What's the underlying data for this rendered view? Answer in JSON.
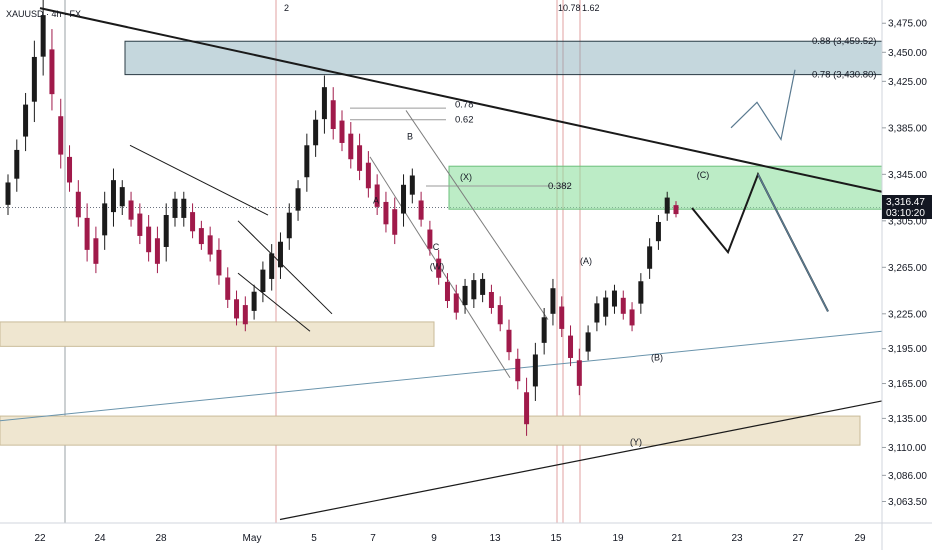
{
  "symbol": "XAUUSD · 4h · FX",
  "symbol_value": "3,316.47",
  "countdown": "03:10:20",
  "top_markers": [
    {
      "x": "Apr 30",
      "text": "2"
    },
    {
      "x": "May 15",
      "text": "10.78"
    },
    {
      "x": "May 16",
      "text": "1.62"
    }
  ],
  "colors": {
    "up": "#1b1b1b",
    "down": "#a01a4a",
    "price_tag": "#131722",
    "fib_zone": "#6c93a0",
    "green_zone": "#7ad38a",
    "tan_zone": "#e8dcc0",
    "arrow_blue": "#5a7a90",
    "trend_blue": "#6a94ac"
  },
  "chart_data": {
    "type": "candlestick",
    "x_unit": "4h bars, Apr 21 – May 29",
    "ylim": [
      3045,
      3495
    ],
    "y_ticks": [
      3475,
      3450,
      3425,
      3385,
      3345,
      3305,
      3265,
      3225,
      3195,
      3165,
      3135,
      3110,
      3086,
      3063.5
    ],
    "y_tick_labels": [
      "3,475.00",
      "3,450.00",
      "3,425.00",
      "3,385.00",
      "3,345.00",
      "3,305.00",
      "3,265.00",
      "3,225.00",
      "3,195.00",
      "3,165.00",
      "3,135.00",
      "3,110.00",
      "3,086.00",
      "3,063.50"
    ],
    "x_ticks": [
      {
        "date": "2025-04-22",
        "label": "22"
      },
      {
        "date": "2025-04-24",
        "label": "24"
      },
      {
        "date": "2025-04-28",
        "label": "28"
      },
      {
        "date": "2025-05-01",
        "label": "May"
      },
      {
        "date": "2025-05-05",
        "label": "5"
      },
      {
        "date": "2025-05-07",
        "label": "7"
      },
      {
        "date": "2025-05-09",
        "label": "9"
      },
      {
        "date": "2025-05-13",
        "label": "13"
      },
      {
        "date": "2025-05-15",
        "label": "15"
      },
      {
        "date": "2025-05-19",
        "label": "19"
      },
      {
        "date": "2025-05-21",
        "label": "21"
      },
      {
        "date": "2025-05-23",
        "label": "23"
      },
      {
        "date": "2025-05-27",
        "label": "27"
      },
      {
        "date": "2025-05-29",
        "label": "29"
      }
    ],
    "anchors": [
      [
        3310,
        3345
      ],
      [
        3330,
        3375
      ],
      [
        3365,
        3415
      ],
      [
        3390,
        3460
      ],
      [
        3430,
        3495
      ],
      [
        3400,
        3470
      ],
      [
        3350,
        3410
      ],
      [
        3330,
        3370
      ],
      [
        3300,
        3340
      ],
      [
        3270,
        3320
      ],
      [
        3260,
        3300
      ],
      [
        3280,
        3330
      ],
      [
        3300,
        3350
      ],
      [
        3310,
        3340
      ],
      [
        3300,
        3330
      ],
      [
        3285,
        3320
      ],
      [
        3270,
        3310
      ],
      [
        3260,
        3300
      ],
      [
        3270,
        3320
      ],
      [
        3300,
        3330
      ],
      [
        3300,
        3330
      ],
      [
        3290,
        3320
      ],
      [
        3280,
        3305
      ],
      [
        3270,
        3300
      ],
      [
        3250,
        3290
      ],
      [
        3230,
        3265
      ],
      [
        3215,
        3245
      ],
      [
        3210,
        3240
      ],
      [
        3220,
        3250
      ],
      [
        3235,
        3270
      ],
      [
        3245,
        3285
      ],
      [
        3255,
        3295
      ],
      [
        3280,
        3320
      ],
      [
        3305,
        3340
      ],
      [
        3330,
        3380
      ],
      [
        3360,
        3400
      ],
      [
        3380,
        3430
      ],
      [
        3375,
        3420
      ],
      [
        3365,
        3400
      ],
      [
        3350,
        3390
      ],
      [
        3340,
        3380
      ],
      [
        3325,
        3365
      ],
      [
        3310,
        3345
      ],
      [
        3295,
        3330
      ],
      [
        3285,
        3325
      ],
      [
        3300,
        3345
      ],
      [
        3320,
        3350
      ],
      [
        3300,
        3330
      ],
      [
        3275,
        3305
      ],
      [
        3250,
        3280
      ],
      [
        3230,
        3260
      ],
      [
        3220,
        3250
      ],
      [
        3225,
        3255
      ],
      [
        3230,
        3260
      ],
      [
        3235,
        3260
      ],
      [
        3225,
        3250
      ],
      [
        3210,
        3240
      ],
      [
        3185,
        3220
      ],
      [
        3160,
        3195
      ],
      [
        3120,
        3170
      ],
      [
        3150,
        3200
      ],
      [
        3190,
        3230
      ],
      [
        3215,
        3255
      ],
      [
        3205,
        3240
      ],
      [
        3180,
        3215
      ],
      [
        3155,
        3195
      ],
      [
        3185,
        3215
      ],
      [
        3210,
        3240
      ],
      [
        3215,
        3245
      ],
      [
        3225,
        3250
      ],
      [
        3220,
        3245
      ],
      [
        3210,
        3235
      ],
      [
        3225,
        3260
      ],
      [
        3255,
        3290
      ],
      [
        3280,
        3310
      ],
      [
        3305,
        3330
      ],
      [
        3308,
        3322
      ]
    ],
    "series": [],
    "labels": [
      {
        "text": "A"
      },
      {
        "text": "B"
      },
      {
        "text": "C"
      },
      {
        "text": "(W)"
      },
      {
        "text": "(X)"
      },
      {
        "text": "(A)"
      },
      {
        "text": "(B)"
      },
      {
        "text": "(C)"
      },
      {
        "text": "(Y)"
      }
    ],
    "fib": [
      {
        "text": "0.88 (3,459.52)"
      },
      {
        "text": "0.78 (3,430.80)"
      },
      {
        "text": "0.78"
      },
      {
        "text": "0.62"
      },
      {
        "text": "0.382"
      }
    ],
    "zones": [
      {
        "name": "fib-zone",
        "y0": 3430.8,
        "y1": 3459.52
      },
      {
        "name": "green-zone",
        "y0": 3315,
        "y1": 3352
      },
      {
        "name": "tan-zone-upper",
        "y0": 3197,
        "y1": 3218
      },
      {
        "name": "tan-zone-lower",
        "y0": 3112,
        "y1": 3137
      }
    ]
  }
}
